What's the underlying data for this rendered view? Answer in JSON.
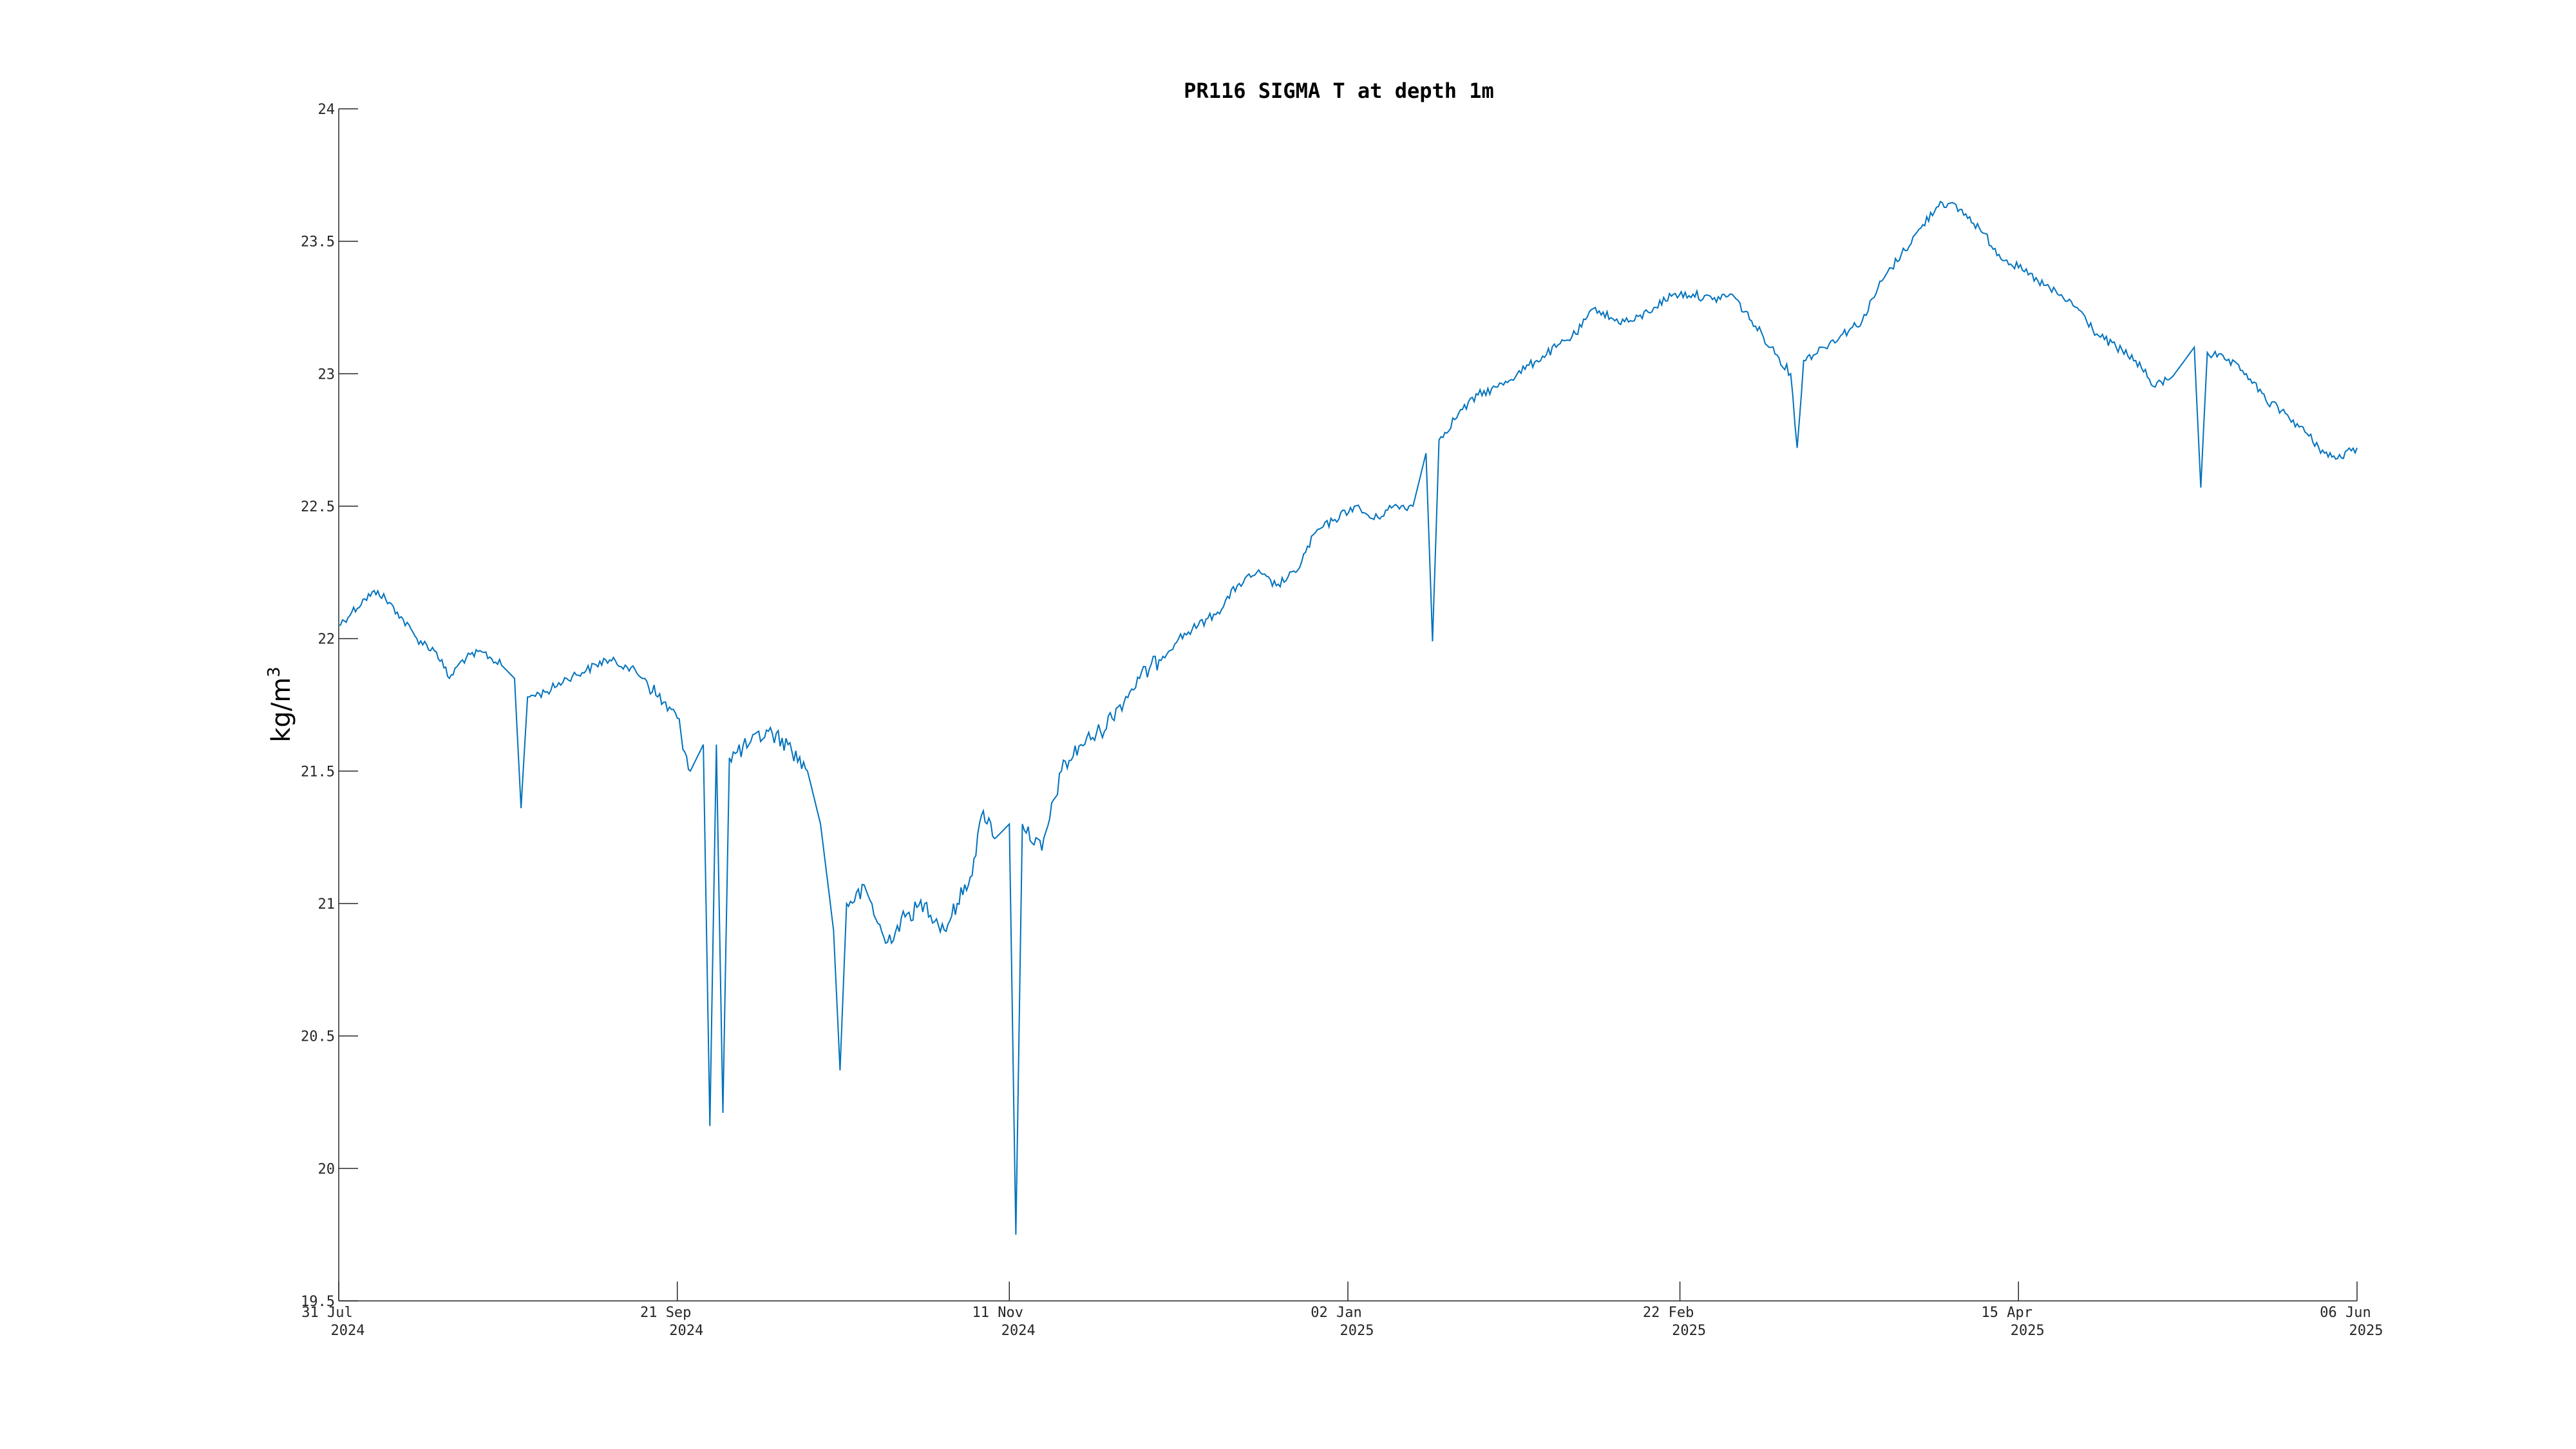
{
  "chart_data": {
    "type": "line",
    "title": "PR116 SIGMA T at depth 1m",
    "xlabel": "",
    "ylabel": "kg/m",
    "ylabel_superscript": "3",
    "x_range": [
      "2024-07-31",
      "2025-06-06"
    ],
    "ylim": [
      19.5,
      24
    ],
    "yticks": [
      {
        "value": 19.5,
        "label": "19.5"
      },
      {
        "value": 20,
        "label": "20"
      },
      {
        "value": 20.5,
        "label": "20.5"
      },
      {
        "value": 21,
        "label": "21"
      },
      {
        "value": 21.5,
        "label": "21.5"
      },
      {
        "value": 22,
        "label": "22"
      },
      {
        "value": 22.5,
        "label": "22.5"
      },
      {
        "value": 23,
        "label": "23"
      },
      {
        "value": 23.5,
        "label": "23.5"
      },
      {
        "value": 24,
        "label": "24"
      }
    ],
    "xticks": [
      {
        "date": "2024-07-31",
        "line1": "31 Jul",
        "line2": "2024"
      },
      {
        "date": "2024-09-21",
        "line1": "21 Sep",
        "line2": "2024"
      },
      {
        "date": "2024-11-11",
        "line1": "11 Nov",
        "line2": "2024"
      },
      {
        "date": "2025-01-02",
        "line1": "02 Jan",
        "line2": "2025"
      },
      {
        "date": "2025-02-22",
        "line1": "22 Feb",
        "line2": "2025"
      },
      {
        "date": "2025-04-15",
        "line1": "15 Apr",
        "line2": "2025"
      },
      {
        "date": "2025-06-06",
        "line1": "06 Jun",
        "line2": "2025"
      }
    ],
    "grid": false,
    "line_color": "#0072BD",
    "series": [
      {
        "values": [
          [
            "2024-07-31",
            22.05
          ],
          [
            "2024-08-02",
            22.1
          ],
          [
            "2024-08-04",
            22.15
          ],
          [
            "2024-08-06",
            22.18
          ],
          [
            "2024-08-09",
            22.1
          ],
          [
            "2024-08-12",
            22.0
          ],
          [
            "2024-08-15",
            21.95
          ],
          [
            "2024-08-17",
            21.85
          ],
          [
            "2024-08-19",
            21.92
          ],
          [
            "2024-08-22",
            21.95
          ],
          [
            "2024-08-25",
            21.9
          ],
          [
            "2024-08-27",
            21.85
          ],
          [
            "2024-08-28",
            21.36
          ],
          [
            "2024-08-29",
            21.78
          ],
          [
            "2024-09-01",
            21.8
          ],
          [
            "2024-09-04",
            21.85
          ],
          [
            "2024-09-07",
            21.88
          ],
          [
            "2024-09-10",
            21.92
          ],
          [
            "2024-09-13",
            21.9
          ],
          [
            "2024-09-16",
            21.85
          ],
          [
            "2024-09-18",
            21.78
          ],
          [
            "2024-09-21",
            21.7
          ],
          [
            "2024-09-23",
            21.5
          ],
          [
            "2024-09-25",
            21.6
          ],
          [
            "2024-09-26",
            20.16
          ],
          [
            "2024-09-27",
            21.6
          ],
          [
            "2024-09-28",
            20.21
          ],
          [
            "2024-09-29",
            21.55
          ],
          [
            "2024-10-02",
            21.6
          ],
          [
            "2024-10-05",
            21.65
          ],
          [
            "2024-10-08",
            21.6
          ],
          [
            "2024-10-11",
            21.5
          ],
          [
            "2024-10-13",
            21.3
          ],
          [
            "2024-10-15",
            20.9
          ],
          [
            "2024-10-16",
            20.37
          ],
          [
            "2024-10-17",
            21.0
          ],
          [
            "2024-10-20",
            21.05
          ],
          [
            "2024-10-23",
            20.85
          ],
          [
            "2024-10-26",
            20.95
          ],
          [
            "2024-10-29",
            21.0
          ],
          [
            "2024-11-01",
            20.9
          ],
          [
            "2024-11-03",
            21.0
          ],
          [
            "2024-11-05",
            21.1
          ],
          [
            "2024-11-07",
            21.35
          ],
          [
            "2024-11-09",
            21.25
          ],
          [
            "2024-11-11",
            21.3
          ],
          [
            "2024-11-12",
            19.75
          ],
          [
            "2024-11-13",
            21.3
          ],
          [
            "2024-11-16",
            21.2
          ],
          [
            "2024-11-19",
            21.5
          ],
          [
            "2024-11-22",
            21.6
          ],
          [
            "2024-11-25",
            21.65
          ],
          [
            "2024-11-28",
            21.75
          ],
          [
            "2024-12-01",
            21.85
          ],
          [
            "2024-12-04",
            21.92
          ],
          [
            "2024-12-07",
            22.0
          ],
          [
            "2024-12-10",
            22.05
          ],
          [
            "2024-12-13",
            22.1
          ],
          [
            "2024-12-16",
            22.2
          ],
          [
            "2024-12-19",
            22.25
          ],
          [
            "2024-12-22",
            22.2
          ],
          [
            "2024-12-25",
            22.25
          ],
          [
            "2024-12-28",
            22.4
          ],
          [
            "2024-12-31",
            22.45
          ],
          [
            "2025-01-03",
            22.5
          ],
          [
            "2025-01-06",
            22.45
          ],
          [
            "2025-01-09",
            22.5
          ],
          [
            "2025-01-12",
            22.5
          ],
          [
            "2025-01-14",
            22.7
          ],
          [
            "2025-01-15",
            21.99
          ],
          [
            "2025-01-16",
            22.75
          ],
          [
            "2025-01-19",
            22.85
          ],
          [
            "2025-01-22",
            22.92
          ],
          [
            "2025-01-25",
            22.95
          ],
          [
            "2025-01-28",
            23.0
          ],
          [
            "2025-01-31",
            23.05
          ],
          [
            "2025-02-03",
            23.1
          ],
          [
            "2025-02-06",
            23.15
          ],
          [
            "2025-02-09",
            23.25
          ],
          [
            "2025-02-12",
            23.2
          ],
          [
            "2025-02-15",
            23.2
          ],
          [
            "2025-02-18",
            23.25
          ],
          [
            "2025-02-21",
            23.3
          ],
          [
            "2025-02-24",
            23.3
          ],
          [
            "2025-02-27",
            23.28
          ],
          [
            "2025-03-02",
            23.3
          ],
          [
            "2025-03-05",
            23.2
          ],
          [
            "2025-03-08",
            23.1
          ],
          [
            "2025-03-11",
            23.0
          ],
          [
            "2025-03-12",
            22.72
          ],
          [
            "2025-03-13",
            23.05
          ],
          [
            "2025-03-16",
            23.1
          ],
          [
            "2025-03-19",
            23.15
          ],
          [
            "2025-03-22",
            23.2
          ],
          [
            "2025-03-25",
            23.35
          ],
          [
            "2025-03-28",
            23.45
          ],
          [
            "2025-03-31",
            23.55
          ],
          [
            "2025-04-03",
            23.65
          ],
          [
            "2025-04-06",
            23.62
          ],
          [
            "2025-04-09",
            23.55
          ],
          [
            "2025-04-12",
            23.45
          ],
          [
            "2025-04-15",
            23.4
          ],
          [
            "2025-04-18",
            23.35
          ],
          [
            "2025-04-21",
            23.3
          ],
          [
            "2025-04-24",
            23.25
          ],
          [
            "2025-04-27",
            23.15
          ],
          [
            "2025-04-30",
            23.1
          ],
          [
            "2025-05-03",
            23.05
          ],
          [
            "2025-05-06",
            22.95
          ],
          [
            "2025-05-09",
            23.0
          ],
          [
            "2025-05-12",
            23.1
          ],
          [
            "2025-05-13",
            22.57
          ],
          [
            "2025-05-14",
            23.08
          ],
          [
            "2025-05-17",
            23.05
          ],
          [
            "2025-05-20",
            23.0
          ],
          [
            "2025-05-23",
            22.9
          ],
          [
            "2025-05-26",
            22.85
          ],
          [
            "2025-05-29",
            22.78
          ],
          [
            "2025-06-01",
            22.7
          ],
          [
            "2025-06-03",
            22.68
          ],
          [
            "2025-06-06",
            22.72
          ]
        ]
      }
    ]
  }
}
